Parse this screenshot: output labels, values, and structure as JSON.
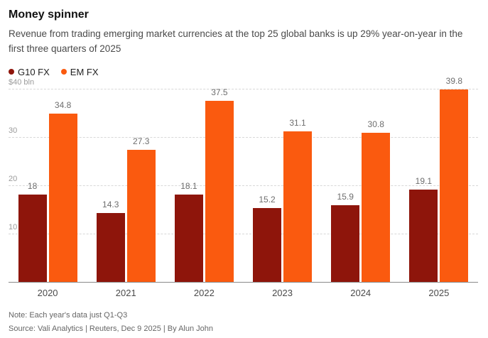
{
  "header": {
    "title": "Money spinner",
    "subtitle": "Revenue from trading emerging market currencies at the top 25 global banks is up 29% year-on-year in the first three quarters of 2025"
  },
  "legend": [
    {
      "label": "G10 FX",
      "color": "#8e150b"
    },
    {
      "label": "EM FX",
      "color": "#fa5a0f"
    }
  ],
  "chart_data": {
    "type": "bar",
    "categories": [
      "2020",
      "2021",
      "2022",
      "2023",
      "2024",
      "2025"
    ],
    "series": [
      {
        "name": "G10 FX",
        "color": "#8e150b",
        "values": [
          18,
          14.3,
          18.1,
          15.2,
          15.9,
          19.1
        ]
      },
      {
        "name": "EM FX",
        "color": "#fa5a0f",
        "values": [
          34.8,
          27.3,
          37.5,
          31.1,
          30.8,
          39.8
        ]
      }
    ],
    "ylim": [
      0,
      40
    ],
    "yticks": [
      {
        "value": 40,
        "label": "$40 bln"
      },
      {
        "value": 30,
        "label": "30"
      },
      {
        "value": 20,
        "label": "20"
      },
      {
        "value": 10,
        "label": "10"
      }
    ],
    "grid": true,
    "legend_position": "top-left",
    "title": "Money spinner",
    "xlabel": "",
    "ylabel": "$ bln"
  },
  "footer": {
    "note": "Note: Each year's data just Q1-Q3",
    "source": "Source: Vali Analytics | Reuters, Dec 9 2025 | By Alun John"
  }
}
